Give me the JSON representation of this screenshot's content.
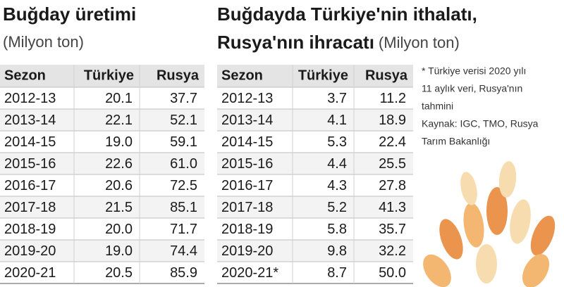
{
  "left": {
    "title": "Buğday üretimi",
    "subtitle": "(Milyon ton)",
    "header": [
      "Sezon",
      "Türkiye",
      "Rusya"
    ],
    "rows": [
      [
        "2012-13",
        "20.1",
        "37.7"
      ],
      [
        "2013-14",
        "22.1",
        "52.1"
      ],
      [
        "2014-15",
        "19.0",
        "59.1"
      ],
      [
        "2015-16",
        "22.6",
        "61.0"
      ],
      [
        "2016-17",
        "20.6",
        "72.5"
      ],
      [
        "2017-18",
        "21.5",
        "85.1"
      ],
      [
        "2018-19",
        "20.0",
        "71.7"
      ],
      [
        "2019-20",
        "19.0",
        "74.4"
      ],
      [
        "2020-21",
        "20.5",
        "85.9"
      ]
    ]
  },
  "right": {
    "title_line1": "Buğdayda Türkiye'nin ithalatı,",
    "title_line2": "Rusya'nın ihracatı",
    "unit": "(Milyon ton)",
    "header": [
      "Sezon",
      "Türkiye",
      "Rusya"
    ],
    "rows": [
      [
        "2012-13",
        "3.7",
        "11.2"
      ],
      [
        "2013-14",
        "4.1",
        "18.9"
      ],
      [
        "2014-15",
        "5.3",
        "22.4"
      ],
      [
        "2015-16",
        "4.4",
        "25.5"
      ],
      [
        "2016-17",
        "4.3",
        "27.8"
      ],
      [
        "2017-18",
        "5.2",
        "41.3"
      ],
      [
        "2018-19",
        "5.8",
        "35.7"
      ],
      [
        "2019-20",
        "9.8",
        "32.2"
      ],
      [
        "2020-21*",
        "8.7",
        "50.0"
      ]
    ]
  },
  "note": {
    "lines": [
      "* Türkiye verisi 2020 yılı",
      "11 aylık veri, Rusya'nın",
      "tahmini",
      "Kaynak: IGC, TMO, Rusya",
      "Tarım Bakanlığı"
    ]
  }
}
